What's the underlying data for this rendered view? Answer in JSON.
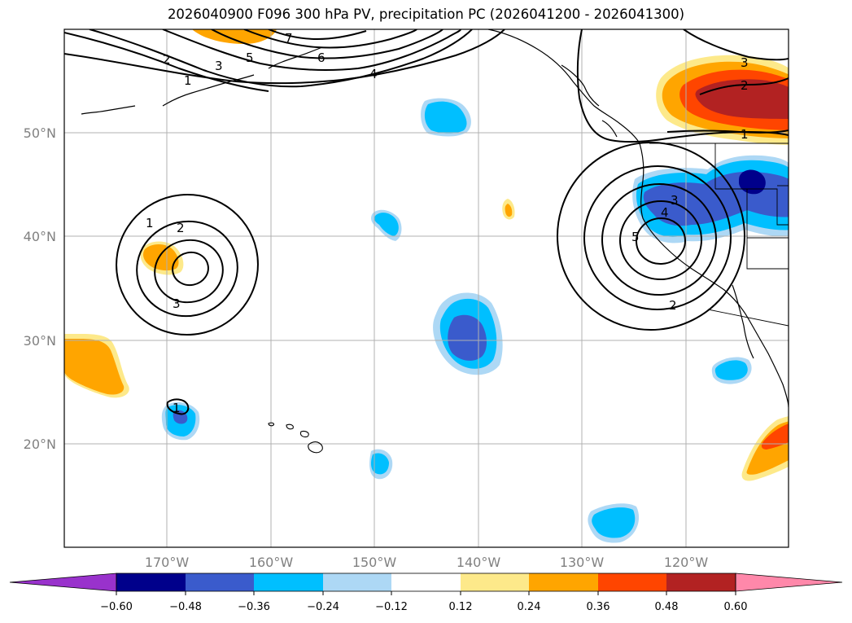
{
  "title": "2026040900 F096 300 hPa PV, precipitation PC (2026041200 - 2026041300)",
  "lat_labels": [
    "50°N",
    "40°N",
    "30°N",
    "20°N"
  ],
  "lon_labels": [
    "170°W",
    "160°W",
    "150°W",
    "140°W",
    "130°W",
    "120°W"
  ],
  "colorbar": {
    "ticks": [
      "−0.60",
      "−0.48",
      "−0.36",
      "−0.24",
      "−0.12",
      "0.12",
      "0.24",
      "0.36",
      "0.48",
      "0.60"
    ],
    "colors": [
      "#9932cc",
      "#00008b",
      "#3a5bcc",
      "#00bfff",
      "#add8f5",
      "#ffffff",
      "#fde98a",
      "#ffa500",
      "#ff4500",
      "#b22222",
      "#ff88aa"
    ]
  },
  "pv_contour_labels": {
    "west_low": [
      "1",
      "2",
      "3"
    ],
    "north_trough": [
      "1",
      "2",
      "3",
      "4",
      "5",
      "6",
      "7"
    ],
    "east_low": [
      "2",
      "3",
      "4",
      "5"
    ],
    "ne_ridge": [
      "1",
      "2",
      "3"
    ],
    "hawaii_small": [
      "1"
    ]
  },
  "colors": {
    "orange": "#ffa500",
    "yellow": "#fde98a",
    "red_orange": "#ff4500",
    "dark_red": "#b22222",
    "light_blue": "#add8f5",
    "deep_sky_blue": "#00bfff",
    "royal_blue": "#3a5bcc",
    "navy": "#00008b",
    "grid": "#b0b0b0"
  }
}
